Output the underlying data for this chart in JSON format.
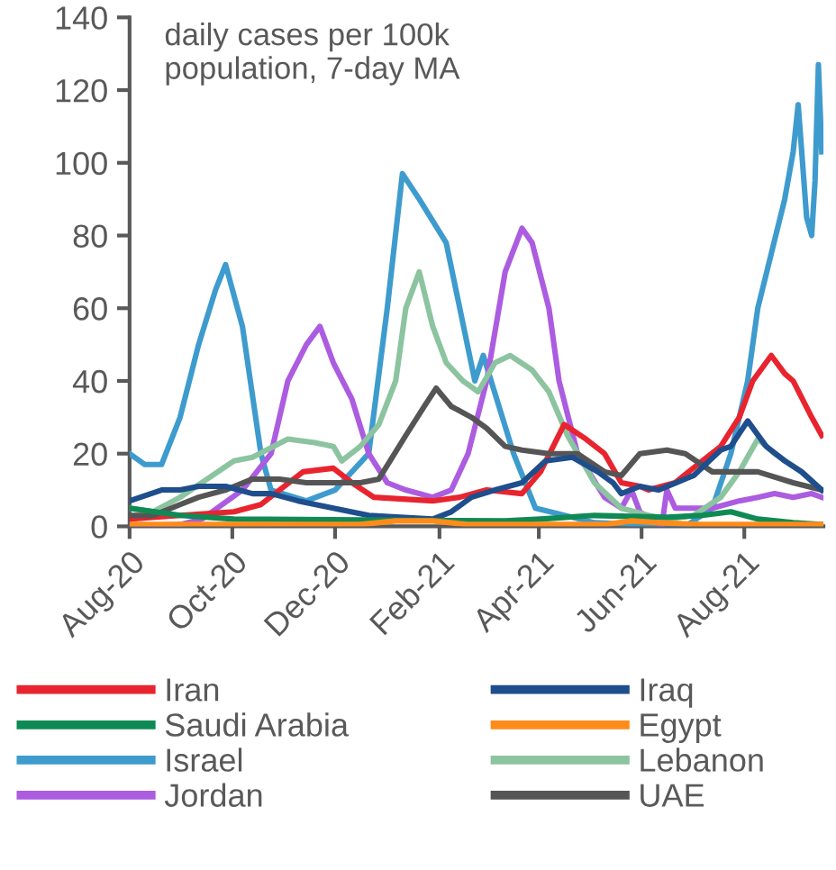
{
  "chart_data": {
    "type": "line",
    "annotations": [
      "daily cases per 100k\npopulation, 7-day MA"
    ],
    "xlim": [
      "2020-08-01",
      "2021-09-17"
    ],
    "xticks": [
      {
        "value": "2020-08-01",
        "label": "Aug-20"
      },
      {
        "value": "2020-10-01",
        "label": "Oct-20"
      },
      {
        "value": "2020-12-01",
        "label": "Dec-20"
      },
      {
        "value": "2021-02-01",
        "label": "Feb-21"
      },
      {
        "value": "2021-04-01",
        "label": "Apr-21"
      },
      {
        "value": "2021-06-01",
        "label": "Jun-21"
      },
      {
        "value": "2021-08-01",
        "label": "Aug-21"
      }
    ],
    "ylim": [
      0,
      140
    ],
    "yticks": [
      0,
      20,
      40,
      60,
      80,
      100,
      120,
      140
    ],
    "grid": false,
    "legend": "bottom",
    "marker": "none",
    "line_style": "solid",
    "series": [
      {
        "name": "Iran",
        "color": "#e8242e",
        "x": [
          "2020-08-01",
          "2020-08-31",
          "2020-10-02",
          "2020-10-18",
          "2020-10-29",
          "2020-11-12",
          "2020-11-30",
          "2020-12-11",
          "2020-12-24",
          "2021-01-28",
          "2021-02-13",
          "2021-03-01",
          "2021-03-22",
          "2021-04-02",
          "2021-04-16",
          "2021-04-29",
          "2021-05-10",
          "2021-05-20",
          "2021-05-31",
          "2021-06-05",
          "2021-06-21",
          "2021-07-07",
          "2021-07-18",
          "2021-07-29",
          "2021-08-06",
          "2021-08-17",
          "2021-08-25",
          "2021-08-30",
          "2021-09-10",
          "2021-09-16"
        ],
        "values": [
          2,
          3,
          4,
          6,
          10,
          15,
          16,
          12,
          8,
          7,
          8,
          10,
          9,
          15,
          28,
          24,
          20,
          12,
          11,
          10,
          12,
          18,
          22,
          30,
          40,
          47,
          42,
          40,
          30,
          25
        ]
      },
      {
        "name": "Iraq",
        "color": "#1f4e8c",
        "x": [
          "2020-08-01",
          "2020-08-20",
          "2020-08-31",
          "2020-09-11",
          "2020-09-27",
          "2020-10-13",
          "2020-10-24",
          "2020-11-09",
          "2020-11-30",
          "2020-12-21",
          "2021-01-28",
          "2021-02-08",
          "2021-02-20",
          "2021-03-06",
          "2021-03-22",
          "2021-04-05",
          "2021-04-21",
          "2021-05-06",
          "2021-05-15",
          "2021-05-20",
          "2021-05-31",
          "2021-06-11",
          "2021-07-02",
          "2021-07-18",
          "2021-07-24",
          "2021-08-03",
          "2021-08-14",
          "2021-08-25",
          "2021-09-04",
          "2021-09-16"
        ],
        "values": [
          7,
          10,
          10,
          11,
          11,
          9,
          9,
          7,
          5,
          3,
          2,
          4,
          8,
          10,
          12,
          18,
          19,
          15,
          12,
          9,
          11,
          10,
          14,
          21,
          22,
          29,
          22,
          18,
          15,
          10
        ]
      },
      {
        "name": "Saudi Arabia",
        "color": "#0f8a55",
        "x": [
          "2020-08-01",
          "2020-08-31",
          "2020-10-02",
          "2021-03-12",
          "2021-04-02",
          "2021-05-04",
          "2021-06-16",
          "2021-07-07",
          "2021-07-24",
          "2021-08-09",
          "2021-08-30",
          "2021-09-16"
        ],
        "values": [
          5,
          3,
          2,
          1.5,
          2,
          3,
          2.5,
          3,
          4,
          2,
          1,
          0.5
        ]
      },
      {
        "name": "Egypt",
        "color": "#ff8c1a",
        "x": [
          "2020-08-01",
          "2020-12-16",
          "2021-01-06",
          "2021-01-28",
          "2021-02-18",
          "2021-05-10",
          "2021-05-26",
          "2021-06-11",
          "2021-07-07",
          "2021-09-16"
        ],
        "values": [
          0.5,
          0.5,
          1.5,
          1.5,
          0.5,
          0.5,
          1.5,
          1,
          0.5,
          0.5
        ]
      },
      {
        "name": "Israel",
        "color": "#3e9bce",
        "x": [
          "2020-08-01",
          "2020-08-10",
          "2020-08-20",
          "2020-08-31",
          "2020-09-11",
          "2020-09-21",
          "2020-09-27",
          "2020-10-07",
          "2020-10-18",
          "2020-10-24",
          "2020-11-14",
          "2020-12-01",
          "2020-12-21",
          "2021-01-01",
          "2021-01-10",
          "2021-01-20",
          "2021-02-05",
          "2021-02-22",
          "2021-02-27",
          "2021-03-17",
          "2021-03-30",
          "2021-05-04",
          "2021-06-27",
          "2021-07-13",
          "2021-07-24",
          "2021-08-03",
          "2021-08-09",
          "2021-08-17",
          "2021-08-25",
          "2021-08-30",
          "2021-09-02",
          "2021-09-07",
          "2021-09-10",
          "2021-09-12",
          "2021-09-14",
          "2021-09-16"
        ],
        "values": [
          20,
          17,
          17,
          30,
          50,
          65,
          72,
          55,
          20,
          10,
          7,
          10,
          20,
          60,
          97,
          90,
          78,
          40,
          47,
          20,
          5,
          1,
          0,
          5,
          20,
          40,
          60,
          75,
          90,
          103,
          116,
          85,
          80,
          95,
          127,
          103
        ]
      },
      {
        "name": "Lebanon",
        "color": "#8cc4a0",
        "x": [
          "2020-08-01",
          "2020-08-15",
          "2020-08-31",
          "2020-09-16",
          "2020-10-02",
          "2020-10-13",
          "2020-11-03",
          "2020-11-19",
          "2020-11-30",
          "2020-12-05",
          "2020-12-16",
          "2020-12-27",
          "2021-01-06",
          "2021-01-12",
          "2021-01-20",
          "2021-01-28",
          "2021-02-05",
          "2021-02-15",
          "2021-02-24",
          "2021-03-06",
          "2021-03-15",
          "2021-03-28",
          "2021-04-07",
          "2021-04-18",
          "2021-05-04",
          "2021-05-20",
          "2021-06-05",
          "2021-06-16",
          "2021-07-02",
          "2021-07-18",
          "2021-07-29",
          "2021-08-09",
          "2021-08-19",
          "2021-09-04",
          "2021-09-16"
        ],
        "values": [
          5,
          4,
          8,
          13,
          18,
          19,
          24,
          23,
          22,
          18,
          22,
          28,
          40,
          60,
          70,
          55,
          45,
          40,
          37,
          45,
          47,
          43,
          37,
          25,
          12,
          5,
          3,
          2,
          3,
          8,
          15,
          24,
          20,
          15,
          10
        ]
      },
      {
        "name": "Jordan",
        "color": "#ac5ce0",
        "x": [
          "2020-08-01",
          "2020-08-31",
          "2020-09-13",
          "2020-10-07",
          "2020-10-24",
          "2020-11-03",
          "2020-11-14",
          "2020-11-22",
          "2020-11-30",
          "2020-12-11",
          "2020-12-21",
          "2021-01-01",
          "2021-01-12",
          "2021-01-28",
          "2021-02-08",
          "2021-02-18",
          "2021-03-01",
          "2021-03-12",
          "2021-03-22",
          "2021-03-28",
          "2021-04-07",
          "2021-04-13",
          "2021-04-24",
          "2021-05-10",
          "2021-05-20",
          "2021-05-26",
          "2021-05-31",
          "2021-06-13",
          "2021-06-16",
          "2021-06-21",
          "2021-07-13",
          "2021-07-29",
          "2021-08-09",
          "2021-08-19",
          "2021-08-30",
          "2021-09-10",
          "2021-09-16"
        ],
        "values": [
          0,
          0.5,
          2,
          10,
          20,
          40,
          50,
          55,
          45,
          35,
          20,
          12,
          10,
          8,
          10,
          20,
          40,
          70,
          82,
          78,
          60,
          40,
          20,
          8,
          5,
          10,
          4,
          0,
          10,
          5,
          5,
          7,
          8,
          9,
          8,
          9,
          8
        ]
      },
      {
        "name": "UAE",
        "color": "#555555",
        "x": [
          "2020-08-01",
          "2020-08-15",
          "2020-08-31",
          "2020-09-11",
          "2020-09-27",
          "2020-10-13",
          "2020-10-29",
          "2020-11-14",
          "2020-12-16",
          "2020-12-27",
          "2021-01-12",
          "2021-01-23",
          "2021-01-30",
          "2021-02-08",
          "2021-02-20",
          "2021-03-01",
          "2021-03-12",
          "2021-03-22",
          "2021-04-07",
          "2021-04-24",
          "2021-05-10",
          "2021-05-20",
          "2021-05-31",
          "2021-06-16",
          "2021-06-27",
          "2021-07-13",
          "2021-08-09",
          "2021-08-30",
          "2021-09-16"
        ],
        "values": [
          3,
          3,
          6,
          8,
          10,
          13,
          13,
          12,
          12,
          13,
          25,
          33,
          38,
          33,
          30,
          27,
          22,
          21,
          20,
          20,
          15,
          14,
          20,
          21,
          20,
          15,
          15,
          12,
          10
        ]
      }
    ]
  }
}
